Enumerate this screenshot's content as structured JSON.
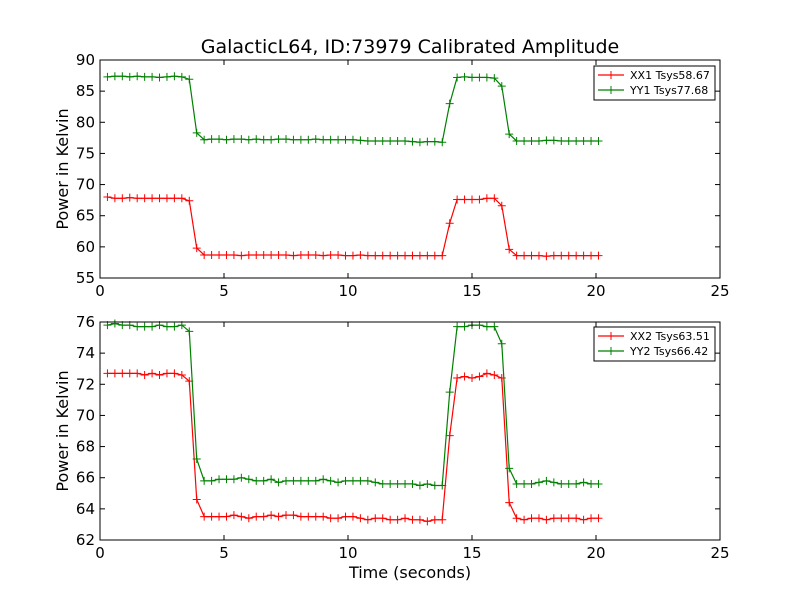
{
  "chart_data": [
    {
      "type": "line",
      "title": "GalacticL64, ID:73979 Calibrated Amplitude",
      "xlabel": "",
      "ylabel": "Power in Kelvin",
      "xlim": [
        0,
        25
      ],
      "ylim": [
        55,
        90
      ],
      "xticks": [
        "0",
        "5",
        "10",
        "15",
        "20",
        "25"
      ],
      "yticks": [
        "55",
        "60",
        "65",
        "70",
        "75",
        "80",
        "85",
        "90"
      ],
      "grid": false,
      "legend_position": "top-right",
      "x": [
        0.3,
        0.6,
        0.9,
        1.2,
        1.5,
        1.8,
        2.1,
        2.4,
        2.7,
        3.0,
        3.3,
        3.6,
        3.9,
        4.2,
        4.5,
        4.8,
        5.1,
        5.4,
        5.7,
        6.0,
        6.3,
        6.6,
        6.9,
        7.2,
        7.5,
        7.8,
        8.1,
        8.4,
        8.7,
        9.0,
        9.3,
        9.6,
        9.9,
        10.2,
        10.5,
        10.8,
        11.1,
        11.4,
        11.7,
        12.0,
        12.3,
        12.6,
        12.9,
        13.2,
        13.5,
        13.8,
        14.1,
        14.4,
        14.7,
        15.0,
        15.3,
        15.6,
        15.9,
        16.2,
        16.5,
        16.8,
        17.1,
        17.4,
        17.7,
        18.0,
        18.3,
        18.6,
        18.9,
        19.2,
        19.5,
        19.8,
        20.1
      ],
      "series": [
        {
          "name": "XX1 Tsys58.67",
          "color": "#ff0000",
          "values": [
            68.0,
            67.8,
            67.8,
            67.9,
            67.8,
            67.8,
            67.8,
            67.8,
            67.8,
            67.8,
            67.8,
            67.4,
            59.8,
            58.7,
            58.7,
            58.7,
            58.7,
            58.7,
            58.6,
            58.7,
            58.7,
            58.7,
            58.7,
            58.7,
            58.7,
            58.6,
            58.7,
            58.7,
            58.7,
            58.6,
            58.7,
            58.7,
            58.6,
            58.6,
            58.7,
            58.6,
            58.6,
            58.6,
            58.6,
            58.6,
            58.6,
            58.6,
            58.6,
            58.6,
            58.6,
            58.6,
            63.8,
            67.6,
            67.6,
            67.6,
            67.6,
            67.8,
            67.8,
            66.6,
            59.6,
            58.6,
            58.6,
            58.6,
            58.6,
            58.5,
            58.6,
            58.6,
            58.6,
            58.6,
            58.6,
            58.6,
            58.6
          ]
        },
        {
          "name": "YY1 Tsys77.68",
          "color": "#008000",
          "values": [
            87.3,
            87.4,
            87.4,
            87.3,
            87.4,
            87.3,
            87.3,
            87.2,
            87.3,
            87.4,
            87.3,
            86.9,
            78.3,
            77.2,
            77.3,
            77.3,
            77.2,
            77.3,
            77.3,
            77.2,
            77.3,
            77.2,
            77.2,
            77.3,
            77.3,
            77.2,
            77.2,
            77.2,
            77.3,
            77.2,
            77.2,
            77.2,
            77.2,
            77.2,
            77.1,
            77.0,
            77.0,
            77.0,
            77.0,
            77.0,
            77.0,
            76.9,
            76.8,
            76.9,
            76.9,
            76.8,
            83.0,
            87.2,
            87.3,
            87.2,
            87.2,
            87.2,
            87.1,
            85.8,
            78.1,
            77.0,
            77.0,
            77.0,
            77.0,
            77.1,
            77.1,
            77.0,
            77.0,
            77.0,
            77.0,
            77.0,
            77.0
          ]
        }
      ]
    },
    {
      "type": "line",
      "title": "",
      "xlabel": "Time (seconds)",
      "ylabel": "Power in Kelvin",
      "xlim": [
        0,
        25
      ],
      "ylim": [
        62,
        76
      ],
      "xticks": [
        "0",
        "5",
        "10",
        "15",
        "20",
        "25"
      ],
      "yticks": [
        "62",
        "64",
        "66",
        "68",
        "70",
        "72",
        "74",
        "76"
      ],
      "grid": false,
      "legend_position": "top-right",
      "x": [
        0.3,
        0.6,
        0.9,
        1.2,
        1.5,
        1.8,
        2.1,
        2.4,
        2.7,
        3.0,
        3.3,
        3.6,
        3.9,
        4.2,
        4.5,
        4.8,
        5.1,
        5.4,
        5.7,
        6.0,
        6.3,
        6.6,
        6.9,
        7.2,
        7.5,
        7.8,
        8.1,
        8.4,
        8.7,
        9.0,
        9.3,
        9.6,
        9.9,
        10.2,
        10.5,
        10.8,
        11.1,
        11.4,
        11.7,
        12.0,
        12.3,
        12.6,
        12.9,
        13.2,
        13.5,
        13.8,
        14.1,
        14.4,
        14.7,
        15.0,
        15.3,
        15.6,
        15.9,
        16.2,
        16.5,
        16.8,
        17.1,
        17.4,
        17.7,
        18.0,
        18.3,
        18.6,
        18.9,
        19.2,
        19.5,
        19.8,
        20.1
      ],
      "series": [
        {
          "name": "XX2 Tsys63.51",
          "color": "#ff0000",
          "values": [
            72.7,
            72.7,
            72.7,
            72.7,
            72.7,
            72.6,
            72.7,
            72.6,
            72.7,
            72.7,
            72.6,
            72.2,
            64.6,
            63.5,
            63.5,
            63.5,
            63.5,
            63.6,
            63.5,
            63.4,
            63.5,
            63.5,
            63.6,
            63.5,
            63.6,
            63.6,
            63.5,
            63.5,
            63.5,
            63.5,
            63.4,
            63.4,
            63.5,
            63.5,
            63.4,
            63.3,
            63.4,
            63.4,
            63.3,
            63.3,
            63.4,
            63.3,
            63.3,
            63.2,
            63.3,
            63.3,
            68.7,
            72.4,
            72.5,
            72.4,
            72.5,
            72.7,
            72.6,
            72.4,
            64.4,
            63.4,
            63.3,
            63.4,
            63.4,
            63.3,
            63.4,
            63.4,
            63.4,
            63.4,
            63.3,
            63.4,
            63.4
          ]
        },
        {
          "name": "YY2 Tsys66.42",
          "color": "#008000",
          "values": [
            75.8,
            75.9,
            75.8,
            75.8,
            75.7,
            75.7,
            75.7,
            75.8,
            75.7,
            75.7,
            75.8,
            75.4,
            67.2,
            65.8,
            65.8,
            65.9,
            65.9,
            65.9,
            66.0,
            65.9,
            65.8,
            65.8,
            65.9,
            65.7,
            65.8,
            65.8,
            65.8,
            65.8,
            65.8,
            65.9,
            65.8,
            65.7,
            65.8,
            65.8,
            65.8,
            65.8,
            65.7,
            65.6,
            65.6,
            65.6,
            65.6,
            65.6,
            65.5,
            65.6,
            65.5,
            65.5,
            71.5,
            75.7,
            75.7,
            75.8,
            75.8,
            75.7,
            75.7,
            74.6,
            66.6,
            65.6,
            65.6,
            65.6,
            65.7,
            65.8,
            65.7,
            65.6,
            65.6,
            65.6,
            65.7,
            65.6,
            65.6
          ]
        }
      ]
    }
  ]
}
